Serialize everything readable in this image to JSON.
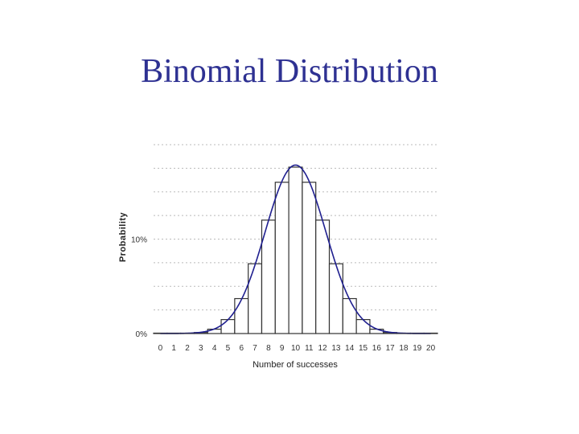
{
  "slide": {
    "title": "Binomial Distribution"
  },
  "chart_data": {
    "type": "bar",
    "title": "",
    "xlabel": "Number of successes",
    "ylabel": "Probability",
    "categories": [
      "0",
      "1",
      "2",
      "3",
      "4",
      "5",
      "6",
      "7",
      "8",
      "9",
      "10",
      "11",
      "12",
      "13",
      "14",
      "15",
      "16",
      "17",
      "18",
      "19",
      "20"
    ],
    "values": [
      0.0,
      0.0,
      0.0002,
      0.0011,
      0.0046,
      0.0148,
      0.037,
      0.0739,
      0.1201,
      0.1602,
      0.1762,
      0.1602,
      0.1201,
      0.0739,
      0.037,
      0.0148,
      0.0046,
      0.0011,
      0.0002,
      0.0,
      0.0
    ],
    "y_tick_labels": [
      {
        "value": 0.0,
        "label": "0%"
      },
      {
        "value": 0.1,
        "label": "10%"
      }
    ],
    "ylim": [
      0,
      0.2
    ],
    "grid": true,
    "overlay": {
      "type": "line",
      "description_color": "#1f1f8f",
      "shape": "smooth normal curve"
    },
    "colors": {
      "bar_fill": "#ffffff",
      "bar_stroke": "#333333",
      "curve": "#1f1f8f",
      "grid": "#bbbbbb"
    }
  }
}
